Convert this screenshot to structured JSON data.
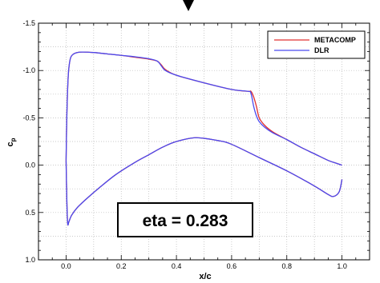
{
  "chart_data": {
    "type": "line",
    "title": "",
    "xlabel": "x/c",
    "ylabel_main": "c",
    "ylabel_sub": "p",
    "xlim": [
      -0.1,
      1.1
    ],
    "ylim": [
      -1.5,
      1.0
    ],
    "y_inverted": true,
    "grid": true,
    "legend_position": "top-right",
    "x_ticks": [
      "0.0",
      "0.2",
      "0.4",
      "0.6",
      "0.8",
      "1.0"
    ],
    "x_tick_values": [
      0,
      0.2,
      0.4,
      0.6,
      0.8,
      1.0
    ],
    "y_ticks": [
      "-1.5",
      "-1.0",
      "-0.5",
      "0.0",
      "0.5",
      "1.0"
    ],
    "y_tick_values": [
      -1.5,
      -1.0,
      -0.5,
      0.0,
      0.5,
      1.0
    ],
    "annotation": "eta = 0.283",
    "series": [
      {
        "name": "METACOMP",
        "color": "#e03030",
        "upper": {
          "x": [
            0.0,
            0.003,
            0.008,
            0.015,
            0.025,
            0.04,
            0.06,
            0.1,
            0.15,
            0.2,
            0.25,
            0.3,
            0.33,
            0.345,
            0.36,
            0.4,
            0.5,
            0.6,
            0.66,
            0.67,
            0.68,
            0.69,
            0.7,
            0.72,
            0.75,
            0.8,
            0.85,
            0.9,
            0.95,
            0.98,
            1.0
          ],
          "y": [
            -0.05,
            -0.55,
            -0.95,
            -1.12,
            -1.17,
            -1.19,
            -1.195,
            -1.19,
            -1.175,
            -1.16,
            -1.14,
            -1.12,
            -1.1,
            -1.06,
            -1.01,
            -0.95,
            -0.87,
            -0.8,
            -0.78,
            -0.78,
            -0.72,
            -0.62,
            -0.5,
            -0.42,
            -0.35,
            -0.27,
            -0.19,
            -0.12,
            -0.05,
            -0.02,
            0.0
          ]
        },
        "lower": {
          "x": [
            0.0,
            0.003,
            0.006,
            0.01,
            0.02,
            0.04,
            0.08,
            0.12,
            0.18,
            0.25,
            0.3,
            0.35,
            0.4,
            0.47,
            0.55,
            0.6,
            0.7,
            0.8,
            0.9,
            0.95,
            0.97,
            0.99,
            1.0
          ],
          "y": [
            -0.05,
            0.4,
            0.62,
            0.6,
            0.53,
            0.45,
            0.34,
            0.24,
            0.1,
            -0.03,
            -0.11,
            -0.19,
            -0.25,
            -0.29,
            -0.26,
            -0.22,
            -0.08,
            0.06,
            0.22,
            0.31,
            0.33,
            0.28,
            0.15
          ]
        }
      },
      {
        "name": "DLR",
        "color": "#4a4af0",
        "upper": {
          "x": [
            0.0,
            0.003,
            0.008,
            0.015,
            0.025,
            0.04,
            0.06,
            0.1,
            0.15,
            0.2,
            0.25,
            0.3,
            0.33,
            0.345,
            0.36,
            0.4,
            0.5,
            0.6,
            0.66,
            0.67,
            0.68,
            0.69,
            0.7,
            0.72,
            0.75,
            0.8,
            0.85,
            0.9,
            0.95,
            0.98,
            1.0
          ],
          "y": [
            -0.05,
            -0.55,
            -0.95,
            -1.12,
            -1.17,
            -1.19,
            -1.195,
            -1.19,
            -1.175,
            -1.16,
            -1.145,
            -1.125,
            -1.1,
            -1.05,
            -1.0,
            -0.95,
            -0.87,
            -0.8,
            -0.78,
            -0.76,
            -0.62,
            -0.52,
            -0.46,
            -0.4,
            -0.34,
            -0.27,
            -0.19,
            -0.12,
            -0.05,
            -0.02,
            0.0
          ]
        },
        "lower": {
          "x": [
            0.0,
            0.003,
            0.006,
            0.01,
            0.02,
            0.04,
            0.08,
            0.12,
            0.18,
            0.25,
            0.3,
            0.35,
            0.4,
            0.47,
            0.55,
            0.6,
            0.7,
            0.8,
            0.9,
            0.95,
            0.97,
            0.99,
            1.0
          ],
          "y": [
            -0.05,
            0.4,
            0.62,
            0.6,
            0.53,
            0.45,
            0.34,
            0.24,
            0.1,
            -0.03,
            -0.11,
            -0.19,
            -0.25,
            -0.29,
            -0.26,
            -0.22,
            -0.08,
            0.06,
            0.22,
            0.31,
            0.33,
            0.28,
            0.15
          ]
        }
      }
    ]
  }
}
